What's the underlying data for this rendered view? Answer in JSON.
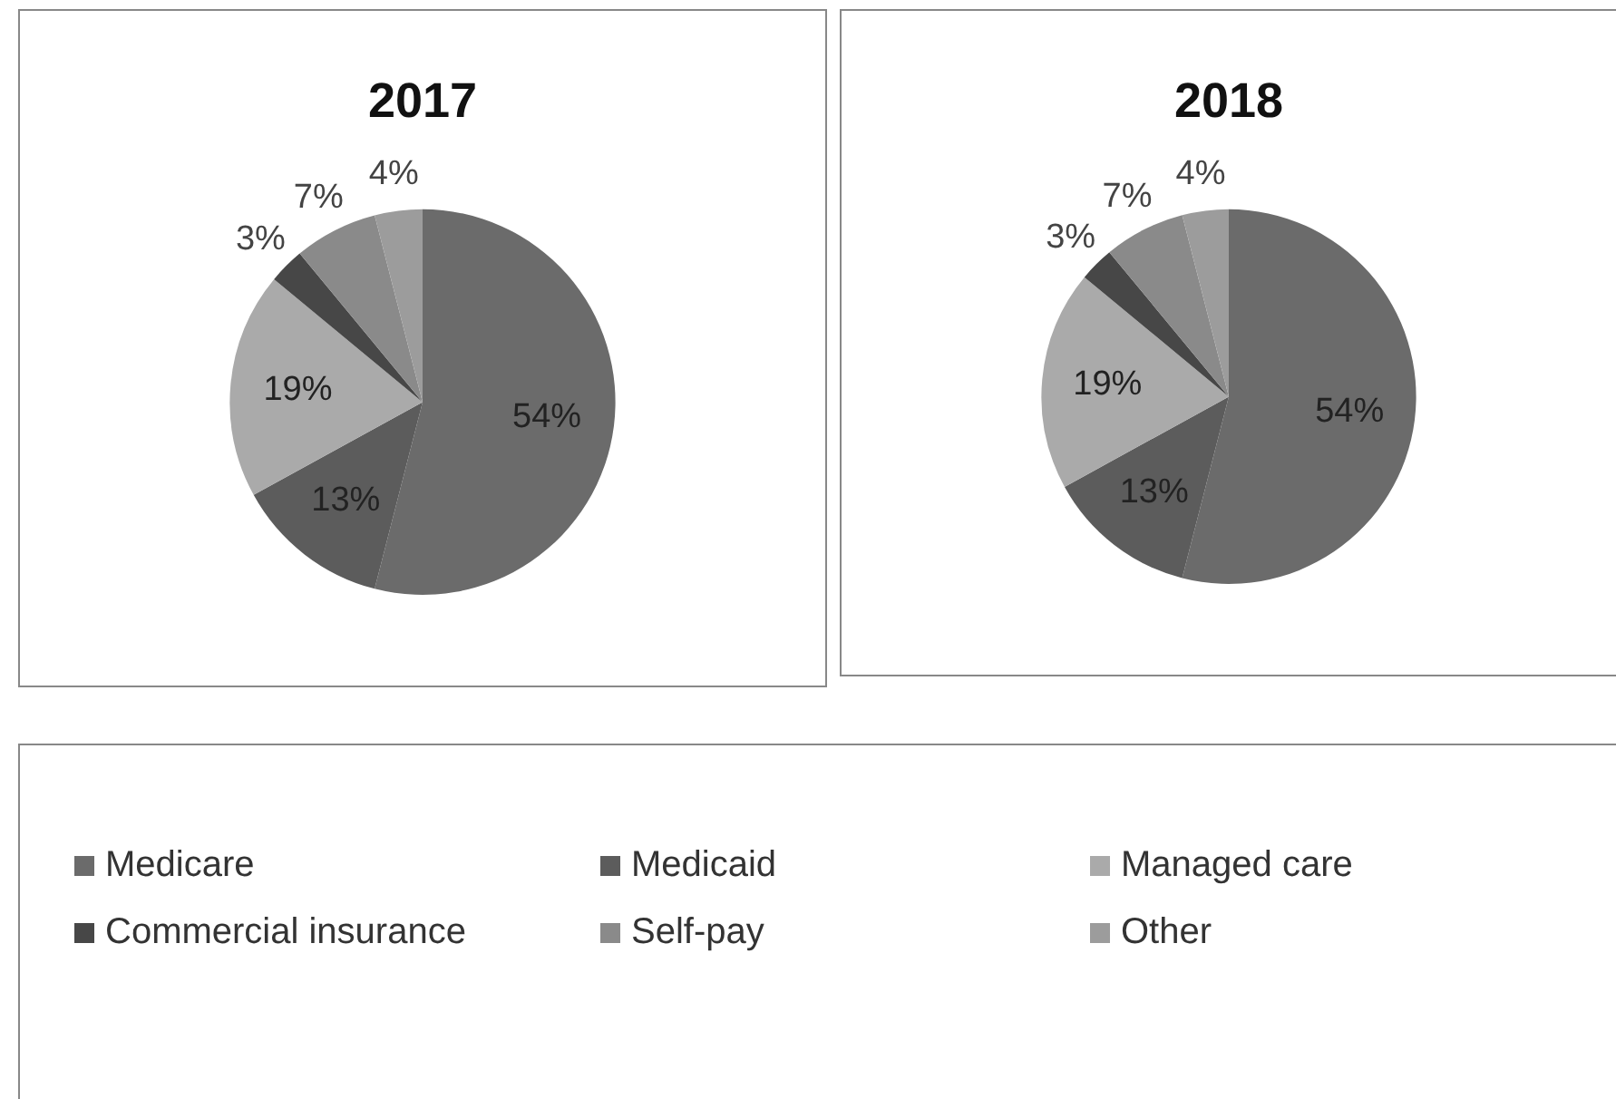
{
  "chart_data": [
    {
      "type": "pie",
      "title": "2017",
      "categories": [
        "Medicare",
        "Medicaid",
        "Managed care",
        "Commercial insurance",
        "Self-pay",
        "Other"
      ],
      "values": [
        54,
        13,
        19,
        3,
        7,
        4
      ],
      "colors": [
        "#6b6b6b",
        "#5c5c5c",
        "#aaaaaa",
        "#474747",
        "#8a8a8a",
        "#9c9c9c"
      ],
      "value_labels": [
        "54%",
        "13%",
        "19%",
        "3%",
        "7%",
        "4%"
      ],
      "legend": "bottom"
    },
    {
      "type": "pie",
      "title": "2018",
      "categories": [
        null,
        null,
        null,
        null,
        null,
        null
      ],
      "values": [
        54,
        13,
        19,
        3,
        7,
        4
      ],
      "colors": [
        "#6b6b6b",
        "#5c5c5c",
        "#aaaaaa",
        "#474747",
        "#8a8a8a",
        "#9c9c9c"
      ],
      "value_labels": [
        "54%",
        "13%",
        "19%",
        "3%",
        "7%",
        "4%"
      ]
    }
  ]
}
